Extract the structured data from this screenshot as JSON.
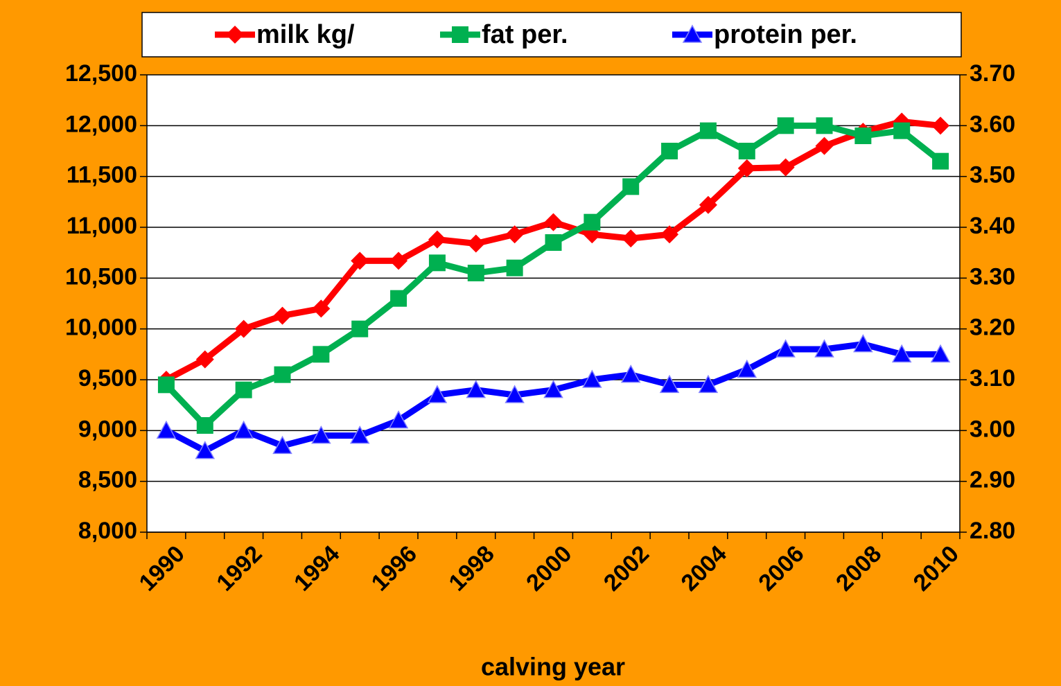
{
  "chart_data": {
    "type": "line",
    "x_label": "calving year",
    "categories": [
      "1990",
      null,
      "1992",
      null,
      "1994",
      null,
      "1996",
      null,
      "1998",
      null,
      "2000",
      null,
      "2002",
      null,
      "2004",
      null,
      "2006",
      null,
      "2008",
      null,
      "2010"
    ],
    "series": [
      {
        "name": "milk kg/",
        "color": "#ff0000",
        "marker": "diamond",
        "values": [
          9500,
          9700,
          10000,
          10130,
          10200,
          10670,
          10670,
          10880,
          10840,
          10930,
          11050,
          10930,
          10890,
          10930,
          11220,
          11580,
          11590,
          11800,
          11940,
          12040,
          12000
        ]
      },
      {
        "name": "fat per.",
        "color": "#00b050",
        "marker": "square",
        "axis": "y2",
        "values": [
          3.09,
          3.01,
          3.08,
          3.11,
          3.15,
          3.2,
          3.26,
          3.33,
          3.31,
          3.32,
          3.37,
          3.41,
          3.48,
          3.55,
          3.59,
          3.55,
          3.6,
          3.6,
          3.58,
          3.59,
          3.53
        ]
      },
      {
        "name": "protein per.",
        "color": "#0000ff",
        "marker": "triangle",
        "axis": "y2",
        "values": [
          3.0,
          2.96,
          3.0,
          2.97,
          2.99,
          2.99,
          3.02,
          3.07,
          3.08,
          3.07,
          3.08,
          3.1,
          3.11,
          3.09,
          3.09,
          3.12,
          3.16,
          3.16,
          3.17,
          3.15,
          3.15
        ]
      }
    ],
    "ylim": [
      8000,
      12500
    ],
    "yticks": [
      {
        "value": 8000,
        "label": "8,000"
      },
      {
        "value": 8500,
        "label": "8,500"
      },
      {
        "value": 9000,
        "label": "9,000"
      },
      {
        "value": 9500,
        "label": "9,500"
      },
      {
        "value": 10000,
        "label": "10,000"
      },
      {
        "value": 10500,
        "label": "10,500"
      },
      {
        "value": 11000,
        "label": "11,000"
      },
      {
        "value": 11500,
        "label": "11,500"
      },
      {
        "value": 12000,
        "label": "12,000"
      },
      {
        "value": 12500,
        "label": "12,500"
      }
    ],
    "y2lim": [
      2.8,
      3.7
    ],
    "y2ticks": [
      {
        "value": 2.8,
        "label": "2.80"
      },
      {
        "value": 2.9,
        "label": "2.90"
      },
      {
        "value": 3.0,
        "label": "3.00"
      },
      {
        "value": 3.1,
        "label": "3.10"
      },
      {
        "value": 3.2,
        "label": "3.20"
      },
      {
        "value": 3.3,
        "label": "3.30"
      },
      {
        "value": 3.4,
        "label": "3.40"
      },
      {
        "value": 3.5,
        "label": "3.50"
      },
      {
        "value": 3.6,
        "label": "3.60"
      },
      {
        "value": 3.7,
        "label": "3.70"
      }
    ],
    "grid": true,
    "legend": "top"
  }
}
